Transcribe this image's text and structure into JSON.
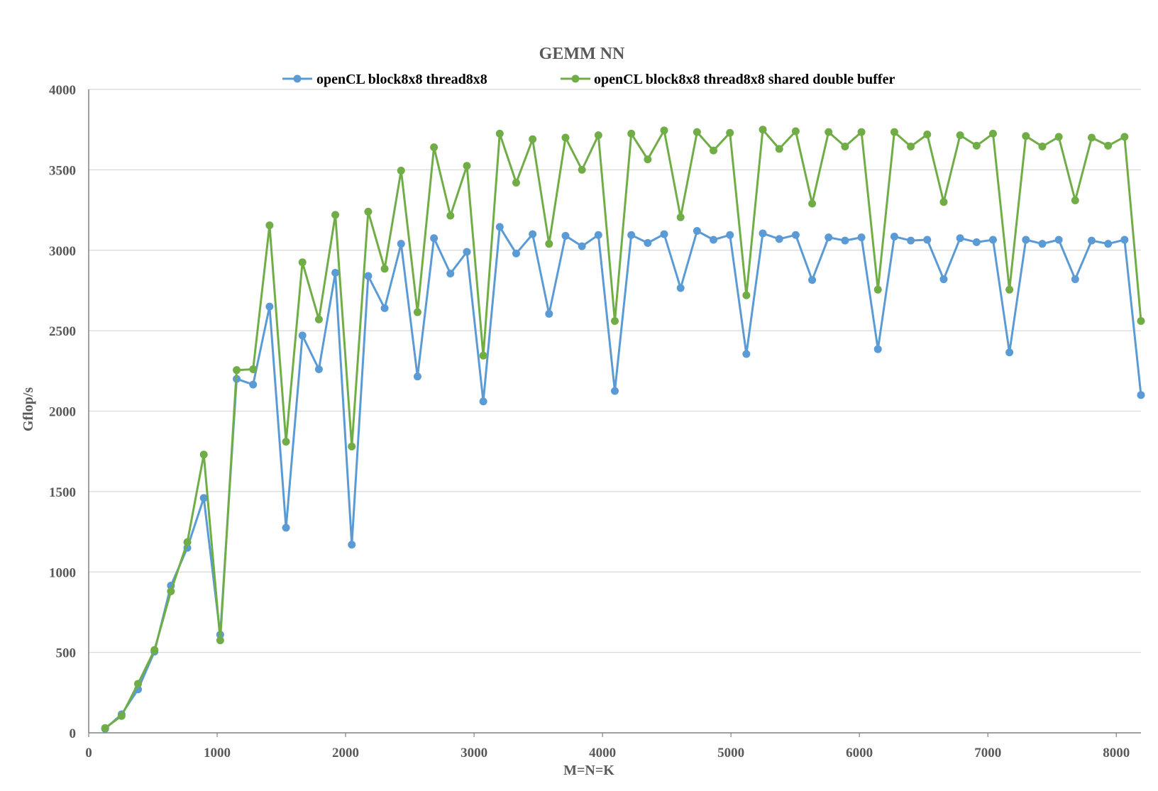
{
  "chart_data": {
    "type": "line",
    "title": "GEMM NN",
    "xlabel": "M=N=K",
    "ylabel": "Gflop/s",
    "xlim": [
      0,
      8192
    ],
    "ylim": [
      0,
      4000
    ],
    "xticks": [
      0,
      1000,
      2000,
      3000,
      4000,
      5000,
      6000,
      7000,
      8000
    ],
    "yticks": [
      0,
      500,
      1000,
      1500,
      2000,
      2500,
      3000,
      3500,
      4000
    ],
    "grid": "horizontal",
    "legend_position": "top",
    "x": [
      128,
      256,
      384,
      512,
      640,
      768,
      896,
      1024,
      1152,
      1280,
      1408,
      1536,
      1664,
      1792,
      1920,
      2048,
      2176,
      2304,
      2432,
      2560,
      2688,
      2816,
      2944,
      3072,
      3200,
      3328,
      3456,
      3584,
      3712,
      3840,
      3968,
      4096,
      4224,
      4352,
      4480,
      4608,
      4736,
      4864,
      4992,
      5120,
      5248,
      5376,
      5504,
      5632,
      5760,
      5888,
      6016,
      6144,
      6272,
      6400,
      6528,
      6656,
      6784,
      6912,
      7040,
      7168,
      7296,
      7424,
      7552,
      7680,
      7808,
      7936,
      8064,
      8192
    ],
    "series": [
      {
        "name": "openCL block8x8 thread8x8",
        "color": "#5b9bd5",
        "values": [
          25,
          115,
          270,
          505,
          915,
          1150,
          1460,
          610,
          2200,
          2165,
          2650,
          1275,
          2470,
          2260,
          2860,
          1170,
          2840,
          2640,
          3040,
          2215,
          3075,
          2855,
          2990,
          2060,
          3145,
          2980,
          3100,
          2605,
          3090,
          3025,
          3095,
          2125,
          3095,
          3045,
          3100,
          2765,
          3120,
          3065,
          3095,
          2355,
          3105,
          3070,
          3095,
          2815,
          3080,
          3060,
          3080,
          2385,
          3085,
          3060,
          3065,
          2820,
          3075,
          3050,
          3065,
          2365,
          3065,
          3040,
          3065,
          2820,
          3060,
          3040,
          3065,
          2100
        ]
      },
      {
        "name": "openCL block8x8 thread8x8 shared double buffer",
        "color": "#70ad47",
        "values": [
          30,
          105,
          305,
          515,
          880,
          1185,
          1730,
          575,
          2255,
          2260,
          3155,
          1810,
          2925,
          2570,
          3220,
          1780,
          3240,
          2885,
          3495,
          2615,
          3640,
          3215,
          3525,
          2345,
          3725,
          3420,
          3690,
          3040,
          3700,
          3500,
          3715,
          2560,
          3725,
          3565,
          3745,
          3205,
          3735,
          3620,
          3730,
          2720,
          3750,
          3630,
          3740,
          3290,
          3735,
          3645,
          3735,
          2755,
          3735,
          3645,
          3720,
          3300,
          3715,
          3650,
          3725,
          2755,
          3710,
          3645,
          3705,
          3310,
          3700,
          3650,
          3705,
          2560
        ]
      }
    ]
  }
}
